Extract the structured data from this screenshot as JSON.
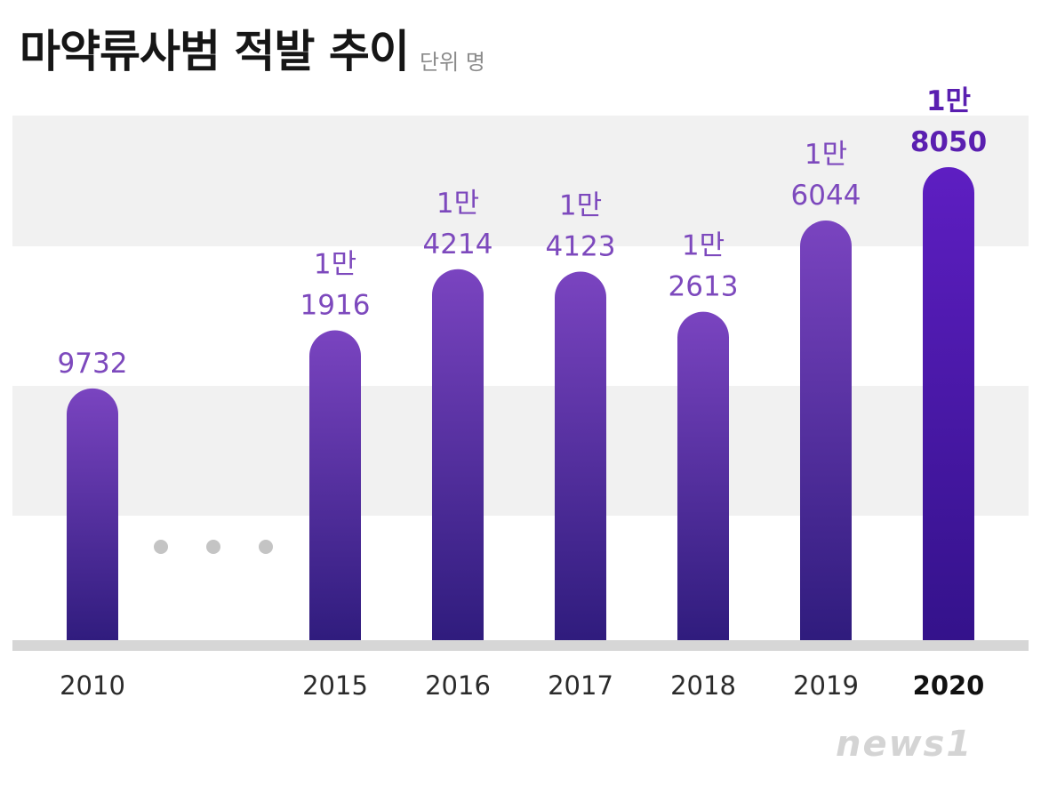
{
  "title": "마약류사범 적발 추이",
  "unit_label": "단위 명",
  "watermark": "news1",
  "colors": {
    "bar_top": "#7a44c0",
    "bar_bottom": "#2e1b7c",
    "bar_hl_top": "#5e1ec2",
    "bar_hl_bottom": "#33128a",
    "label": "#7d49bd",
    "label_hl": "#5a1fb0",
    "band": "#f1f1f1",
    "baseline": "#d6d6d6",
    "gap_dots": "#c4c4c4"
  },
  "chart_data": {
    "type": "bar",
    "title": "마약류사범 적발 추이",
    "unit": "단위 명",
    "categories": [
      "2010",
      "2015",
      "2016",
      "2017",
      "2018",
      "2019",
      "2020"
    ],
    "values": [
      9732,
      11916,
      14214,
      14123,
      12613,
      16044,
      18050
    ],
    "value_labels": [
      [
        "9732"
      ],
      [
        "1만",
        "1916"
      ],
      [
        "1만",
        "4214"
      ],
      [
        "1만",
        "4123"
      ],
      [
        "1만",
        "2613"
      ],
      [
        "1만",
        "6044"
      ],
      [
        "1만",
        "8050"
      ]
    ],
    "highlight_index": 6,
    "axis_break_after_index": 0,
    "xlabel": "",
    "ylabel": "",
    "ylim": [
      0,
      20000
    ],
    "grid": false,
    "legend": "none"
  }
}
